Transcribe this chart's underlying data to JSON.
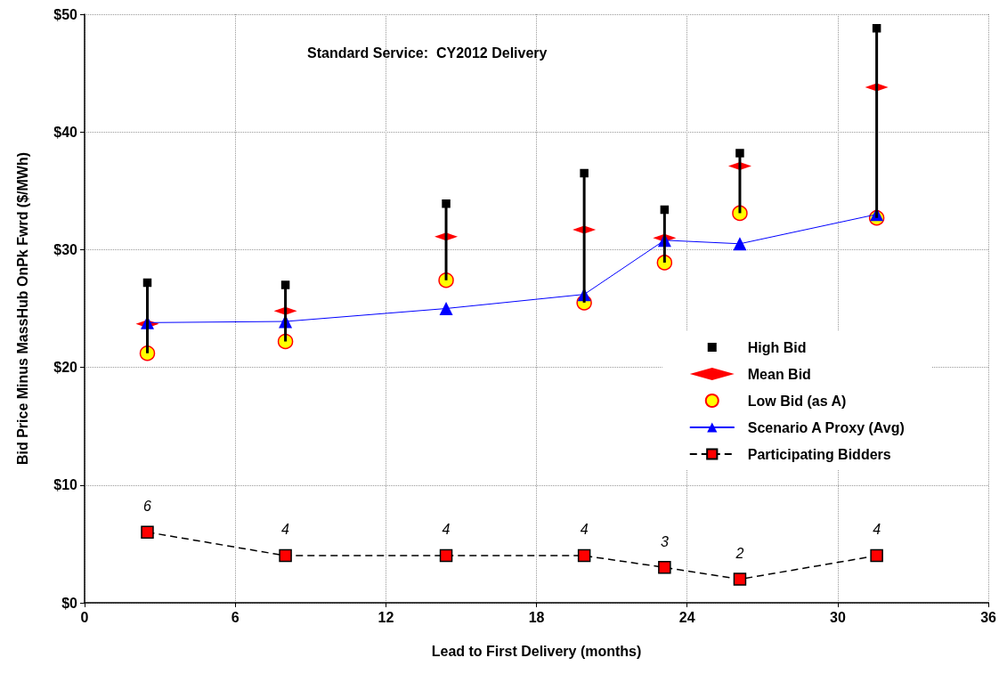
{
  "chart_data": {
    "type": "scatter",
    "title": "Standard Service:  CY2012 Delivery",
    "xlabel": "Lead to First Delivery (months)",
    "ylabel": "Bid Price Minus MassHub OnPk Fwrd ($/MWh)",
    "x": [
      2.5,
      8.0,
      14.4,
      19.9,
      23.1,
      26.1,
      31.55
    ],
    "xlim": [
      0,
      36
    ],
    "xticks": [
      0,
      6,
      12,
      18,
      24,
      30,
      36
    ],
    "ylim": [
      0,
      50
    ],
    "yticks": [
      {
        "value": 0,
        "label": "$0"
      },
      {
        "value": 10,
        "label": "$10"
      },
      {
        "value": 20,
        "label": "$20"
      },
      {
        "value": 30,
        "label": "$30"
      },
      {
        "value": 40,
        "label": "$40"
      },
      {
        "value": 50,
        "label": "$50"
      }
    ],
    "grid": true,
    "legend": "right",
    "series": [
      {
        "name": "High Bid",
        "marker": "square",
        "color": "#000000",
        "values": [
          27.2,
          27.0,
          33.9,
          36.5,
          33.4,
          38.2,
          48.8
        ],
        "errors": [
          [
            21.2,
            27.2
          ],
          [
            22.2,
            27.0
          ],
          [
            27.4,
            33.9
          ],
          [
            25.5,
            36.5
          ],
          [
            28.9,
            33.4
          ],
          [
            33.1,
            38.2
          ],
          [
            32.7,
            48.8
          ]
        ]
      },
      {
        "name": "Mean Bid",
        "marker": "diamond",
        "color": "#ff0000",
        "values": [
          23.7,
          24.8,
          31.1,
          31.7,
          31.0,
          37.1,
          43.8
        ]
      },
      {
        "name": "Low Bid (as A)",
        "marker": "circle",
        "color": "#ffff00",
        "values": [
          21.2,
          22.2,
          27.4,
          25.5,
          28.9,
          33.1,
          32.7
        ]
      },
      {
        "name": "Scenario A Proxy (Avg)",
        "type": "line",
        "marker": "triangle",
        "line_style": "solid",
        "color": "#0000ff",
        "values": [
          23.8,
          23.9,
          25.0,
          26.2,
          30.8,
          30.5,
          33.0
        ]
      },
      {
        "name": "Participating Bidders",
        "type": "line",
        "marker": "square",
        "line_style": "dashed",
        "color": "#ff0000",
        "values": [
          6,
          4,
          4,
          4,
          3,
          2,
          4
        ],
        "value_labels": [
          "6",
          "4",
          "4",
          "4",
          "3",
          "2",
          "4"
        ]
      }
    ]
  }
}
